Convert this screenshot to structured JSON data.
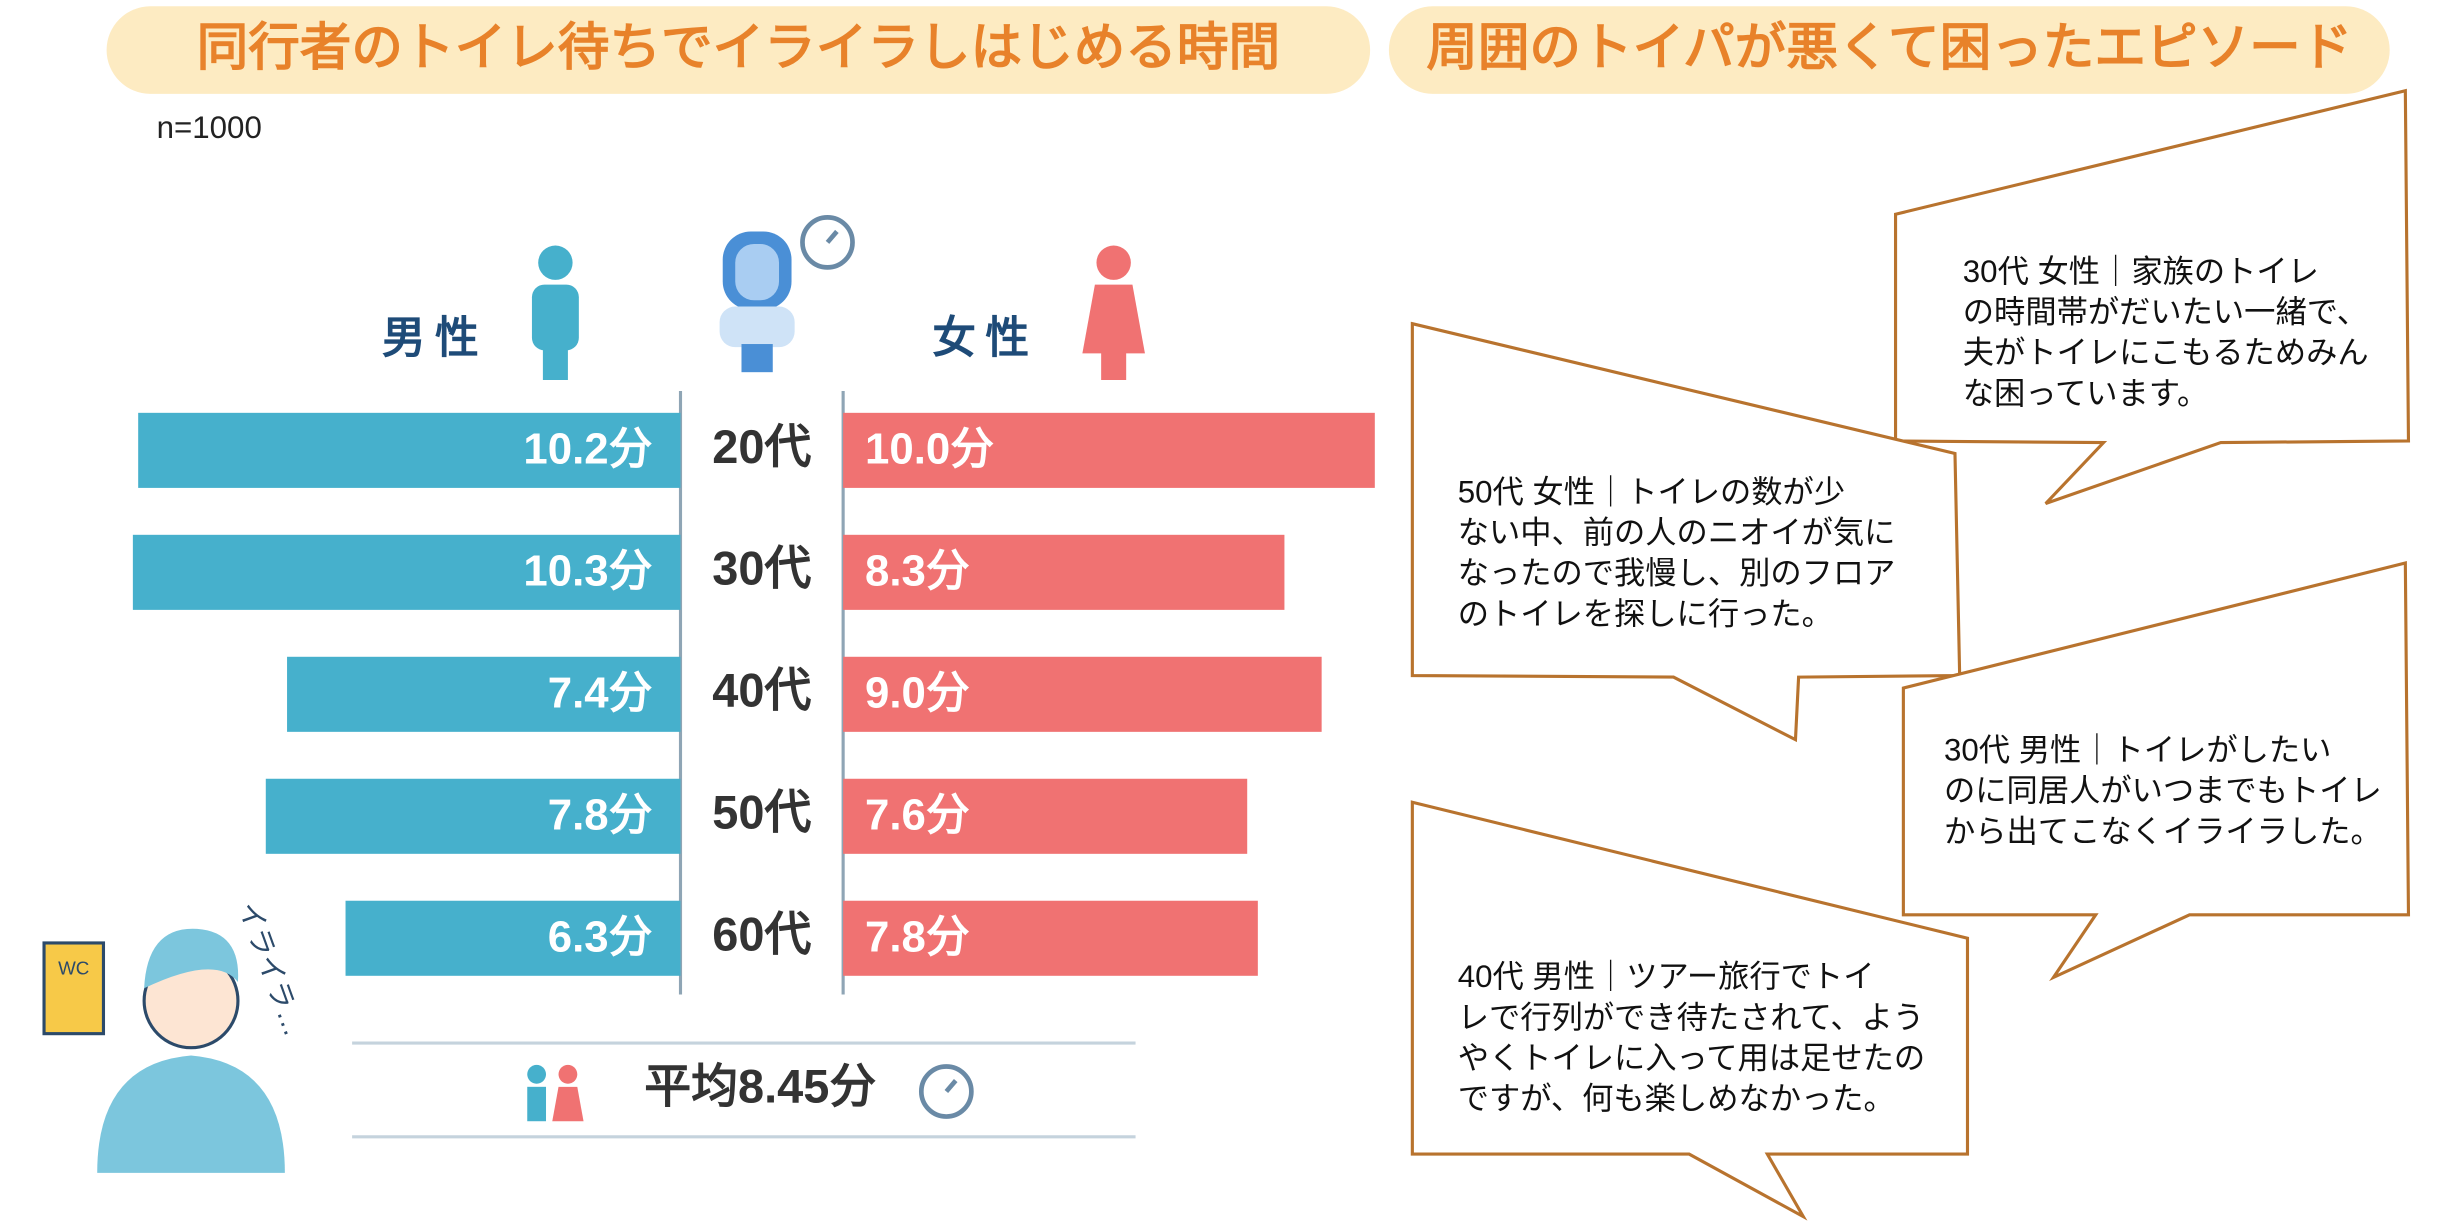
{
  "titles": {
    "left": "同行者のトイレ待ちでイライラしはじめる時間",
    "right": "周囲のトイパが悪くて困ったエピソード"
  },
  "sample": "n=1000",
  "chart_data": {
    "type": "bar",
    "categories": [
      "20代",
      "30代",
      "40代",
      "50代",
      "60代"
    ],
    "series": [
      {
        "name": "男性",
        "color": "#46b0cc",
        "values": [
          10.2,
          10.3,
          7.4,
          7.8,
          6.3
        ],
        "value_labels": [
          "10.2分",
          "10.3分",
          "7.4分",
          "7.8分",
          "6.3分"
        ]
      },
      {
        "name": "女性",
        "color": "#f07272",
        "values": [
          10.0,
          8.3,
          9.0,
          7.6,
          7.8
        ],
        "value_labels": [
          "10.0分",
          "8.3分",
          "9.0分",
          "7.6分",
          "7.8分"
        ]
      }
    ]
  },
  "average": "平均8.45分",
  "illustration_text": {
    "wc": "WC",
    "irairah": "イライラ…"
  },
  "episodes": [
    {
      "lines": [
        "30代 女性｜家族のトイレ",
        "の時間帯がだいたい一緒で、",
        "夫がトイレにこもるためみん",
        "な困っています。"
      ]
    },
    {
      "lines": [
        "50代 女性｜トイレの数が少",
        "ない中、前の人のニオイが気に",
        "なったので我慢し、別のフロア",
        "のトイレを探しに行った。"
      ]
    },
    {
      "lines": [
        "30代 男性｜トイレがしたい",
        "のに同居人がいつまでもトイレ",
        "から出てこなくイライラした。"
      ]
    },
    {
      "lines": [
        "40代 男性｜ツアー旅行でトイ",
        "レで行列ができ待たされて、よう",
        "やくトイレに入って用は足せたの",
        "ですが、何も楽しめなかった。"
      ]
    }
  ]
}
